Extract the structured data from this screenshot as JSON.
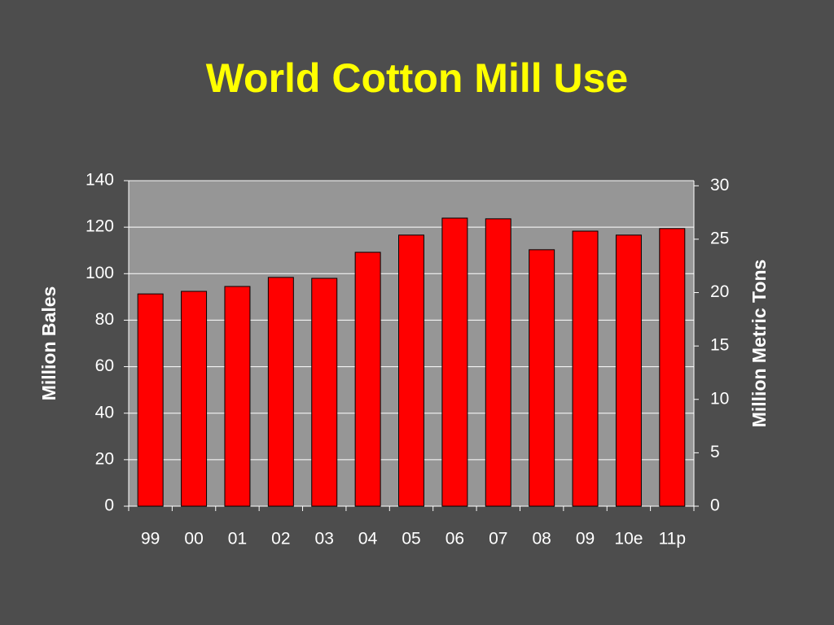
{
  "chart_data": {
    "type": "bar",
    "title": "World Cotton Mill Use",
    "categories": [
      "99",
      "00",
      "01",
      "02",
      "03",
      "04",
      "05",
      "06",
      "07",
      "08",
      "09",
      "10e",
      "11p"
    ],
    "values": [
      91.3,
      92.4,
      94.5,
      98.4,
      98,
      109.2,
      116.6,
      123.9,
      123.6,
      110.3,
      118.3,
      116.6,
      119.4
    ],
    "color": "#ff0000",
    "y_label": "Million Bales",
    "y2_label": "Million Metric Tons",
    "ylim": [
      0,
      140
    ],
    "yticks": [
      0,
      20,
      40,
      60,
      80,
      100,
      120,
      140
    ],
    "y2lim": [
      0,
      30.48
    ],
    "y2ticks": [
      0,
      5,
      10,
      15,
      20,
      25,
      30
    ],
    "grid": true
  }
}
